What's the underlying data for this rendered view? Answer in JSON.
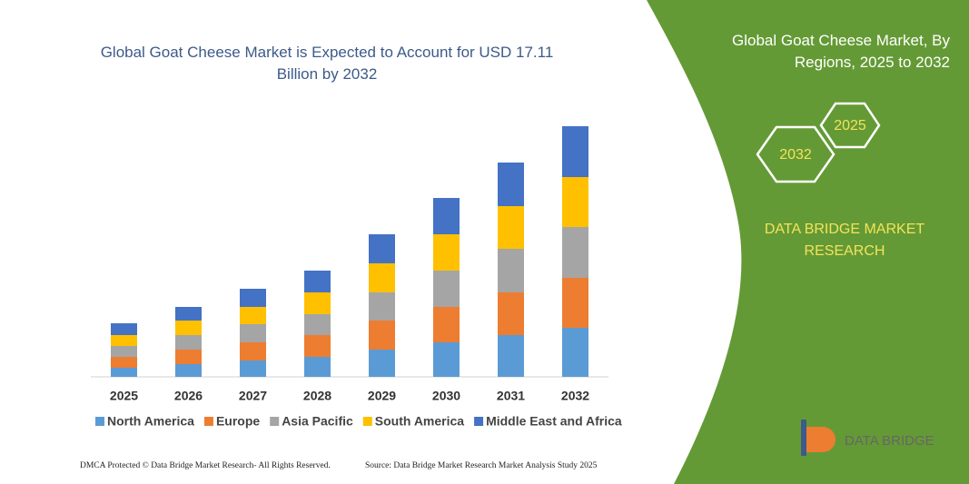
{
  "chart_data": {
    "type": "stacked_bar",
    "title": "Global Goat Cheese Market is Expected to Account for USD 17.11 Billion by 2032",
    "categories": [
      "2025",
      "2026",
      "2027",
      "2028",
      "2029",
      "2030",
      "2031",
      "2032"
    ],
    "series": [
      {
        "name": "North America",
        "color": "#5b9bd5",
        "values": [
          10,
          14,
          18,
          22,
          30,
          38,
          46,
          54
        ]
      },
      {
        "name": "Europe",
        "color": "#ed7d31",
        "values": [
          12,
          16,
          20,
          24,
          32,
          39,
          47,
          55
        ]
      },
      {
        "name": "Asia Pacific",
        "color": "#a5a5a5",
        "values": [
          12,
          16,
          20,
          23,
          31,
          40,
          48,
          56
        ]
      },
      {
        "name": "South America",
        "color": "#ffc000",
        "values": [
          12,
          16,
          19,
          24,
          32,
          40,
          47,
          55
        ]
      },
      {
        "name": "Middle East and Africa",
        "color": "#4472c4",
        "values": [
          13,
          15,
          20,
          24,
          32,
          40,
          48,
          56
        ]
      }
    ],
    "ylim": [
      0,
      280
    ]
  },
  "panel": {
    "title": "Global Goat Cheese Market, By Regions, 2025 to 2032",
    "hex_right": "2025",
    "hex_left": "2032",
    "brand": "DATA BRIDGE MARKET RESEARCH"
  },
  "logo": {
    "text": "DATA BRIDGE"
  },
  "footer": {
    "left": "DMCA Protected © Data Bridge Market Research-  All Rights Reserved.",
    "right": "Source: Data Bridge Market Research  Market Analysis Study 2025"
  }
}
